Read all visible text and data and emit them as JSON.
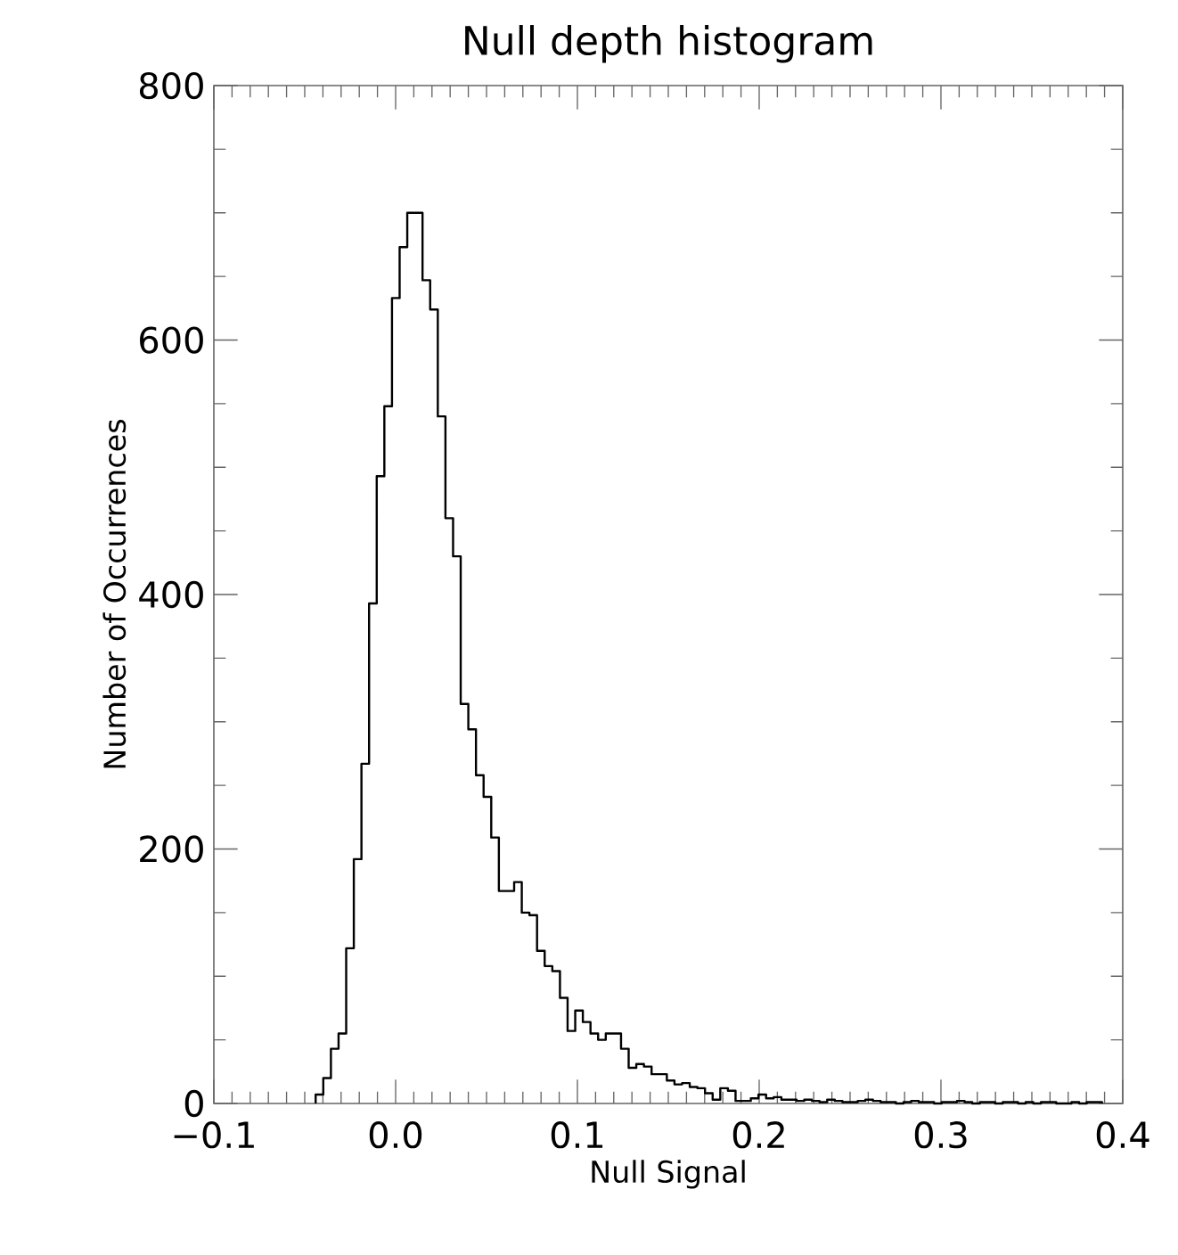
{
  "chart_data": {
    "type": "histogram",
    "title": "Null depth histogram",
    "xlabel": "Null Signal",
    "ylabel": "Number of Occurrences",
    "color": "#000000",
    "xlim": [
      -0.1,
      0.4
    ],
    "ylim": [
      0,
      800
    ],
    "xticks": [
      {
        "value": -0.1,
        "label": "−0.1"
      },
      {
        "value": 0,
        "label": "0.0"
      },
      {
        "value": 0.1,
        "label": "0.1"
      },
      {
        "value": 0.2,
        "label": "0.2"
      },
      {
        "value": 0.3,
        "label": "0.3"
      },
      {
        "value": 0.4,
        "label": "0.4"
      }
    ],
    "yticks": [
      0,
      200,
      400,
      600,
      800
    ],
    "bins": [
      -0.044,
      -0.0398,
      -0.0356,
      -0.0314,
      -0.0272,
      -0.023,
      -0.0188,
      -0.0146,
      -0.0104,
      -0.0062,
      -0.002,
      0.0022,
      0.0064,
      0.0106,
      0.0148,
      0.019,
      0.0232,
      0.0274,
      0.0316,
      0.0358,
      0.04,
      0.0442,
      0.0484,
      0.0526,
      0.0568,
      0.061,
      0.0652,
      0.0694,
      0.0736,
      0.0778,
      0.082,
      0.0862,
      0.0904,
      0.0946,
      0.0988,
      0.103,
      0.1072,
      0.1114,
      0.1156,
      0.1198,
      0.124,
      0.1282,
      0.1324,
      0.1366,
      0.1408,
      0.145,
      0.1492,
      0.1534,
      0.1576,
      0.1618,
      0.166,
      0.1702,
      0.1744,
      0.1786,
      0.1828,
      0.187,
      0.1912,
      0.1954,
      0.1996,
      0.2038,
      0.208,
      0.2122,
      0.2164,
      0.2206,
      0.2248,
      0.229,
      0.2332,
      0.2374,
      0.2416,
      0.2458,
      0.25,
      0.2542,
      0.2584,
      0.2626,
      0.2668,
      0.271,
      0.2752,
      0.2794,
      0.2836,
      0.2878,
      0.292,
      0.2962,
      0.3004,
      0.3046,
      0.3088,
      0.313,
      0.3172,
      0.3214,
      0.3256,
      0.3298,
      0.334,
      0.3382,
      0.3424,
      0.3466,
      0.3508,
      0.355,
      0.3592,
      0.3634,
      0.3676,
      0.3718,
      0.376,
      0.3802,
      0.3844,
      0.3886
    ],
    "values": [
      7,
      20,
      43,
      55,
      122,
      192,
      267,
      393,
      493,
      548,
      633,
      673,
      700,
      700,
      647,
      624,
      540,
      460,
      430,
      314,
      294,
      258,
      241,
      209,
      167,
      167,
      174,
      150,
      148,
      120,
      108,
      104,
      83,
      57,
      73,
      64,
      55,
      50,
      55,
      55,
      43,
      28,
      31,
      29,
      23,
      23,
      18,
      15,
      16,
      13,
      12,
      8,
      3,
      12,
      10,
      2,
      2,
      4,
      7,
      4,
      5,
      3,
      3,
      2,
      3,
      2,
      1,
      3,
      2,
      1,
      1,
      2,
      3,
      2,
      1,
      1,
      0,
      1,
      2,
      1,
      1,
      0,
      1,
      1,
      2,
      1,
      0,
      1,
      1,
      0,
      1,
      1,
      0,
      1,
      0,
      1,
      1,
      0,
      0,
      1,
      0,
      1,
      1
    ]
  }
}
